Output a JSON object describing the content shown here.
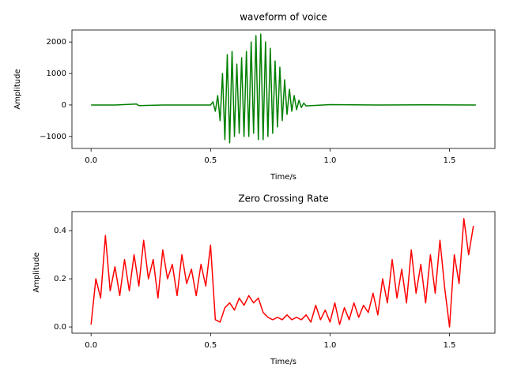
{
  "chart_data": [
    {
      "type": "line",
      "title": "waveform of voice",
      "xlabel": "Time/s",
      "ylabel": "Amplitude",
      "xlim": [
        -0.08,
        1.69
      ],
      "ylim": [
        -1380,
        2380
      ],
      "xticks": [
        {
          "value": 0,
          "label": "0.0"
        },
        {
          "value": 0.5,
          "label": "0.5"
        },
        {
          "value": 1,
          "label": "1.0"
        },
        {
          "value": 1.5,
          "label": "1.5"
        }
      ],
      "yticks": [
        {
          "value": -1000,
          "label": "−1000"
        },
        0,
        1000,
        2000
      ],
      "series": [
        {
          "color": "#008000",
          "x": [
            0,
            0.1,
            0.19,
            0.2,
            0.3,
            0.4,
            0.5,
            0.51,
            0.52,
            0.53,
            0.54,
            0.55,
            0.56,
            0.57,
            0.58,
            0.59,
            0.6,
            0.61,
            0.62,
            0.63,
            0.64,
            0.65,
            0.66,
            0.67,
            0.68,
            0.69,
            0.7,
            0.71,
            0.72,
            0.73,
            0.74,
            0.75,
            0.76,
            0.77,
            0.78,
            0.79,
            0.8,
            0.81,
            0.82,
            0.83,
            0.84,
            0.85,
            0.86,
            0.87,
            0.88,
            0.89,
            0.9,
            1.0,
            1.2,
            1.4,
            1.61
          ],
          "values": [
            0,
            0,
            30,
            -20,
            0,
            0,
            0,
            100,
            -200,
            300,
            -500,
            1000,
            -1100,
            1600,
            -1200,
            1700,
            -1000,
            1300,
            -900,
            1500,
            -1000,
            1700,
            -1000,
            2000,
            -900,
            2200,
            -1100,
            2250,
            -1100,
            2000,
            -1000,
            1800,
            -900,
            1400,
            -700,
            1200,
            -500,
            800,
            -300,
            500,
            -200,
            300,
            -150,
            150,
            -80,
            60,
            -30,
            10,
            0,
            5,
            0
          ]
        }
      ]
    },
    {
      "type": "line",
      "title": "Zero Crossing Rate",
      "xlabel": "Time/s",
      "ylabel": "Amplitude",
      "xlim": [
        -0.08,
        1.69
      ],
      "ylim": [
        -0.026,
        0.479
      ],
      "xticks": [
        {
          "value": 0,
          "label": "0.0"
        },
        {
          "value": 0.5,
          "label": "0.5"
        },
        {
          "value": 1,
          "label": "1.0"
        },
        {
          "value": 1.5,
          "label": "1.5"
        }
      ],
      "yticks": [
        {
          "value": 0,
          "label": "0.0"
        },
        0.2,
        0.4
      ],
      "series": [
        {
          "color": "#ff0000",
          "x": [
            0,
            0.02,
            0.04,
            0.06,
            0.08,
            0.1,
            0.12,
            0.14,
            0.16,
            0.18,
            0.2,
            0.22,
            0.24,
            0.26,
            0.28,
            0.3,
            0.32,
            0.34,
            0.36,
            0.38,
            0.4,
            0.42,
            0.44,
            0.46,
            0.48,
            0.5,
            0.52,
            0.54,
            0.56,
            0.58,
            0.6,
            0.62,
            0.64,
            0.66,
            0.68,
            0.7,
            0.72,
            0.74,
            0.76,
            0.78,
            0.8,
            0.82,
            0.84,
            0.86,
            0.88,
            0.9,
            0.92,
            0.94,
            0.96,
            0.98,
            1.0,
            1.02,
            1.04,
            1.06,
            1.08,
            1.1,
            1.12,
            1.14,
            1.16,
            1.18,
            1.2,
            1.22,
            1.24,
            1.26,
            1.28,
            1.3,
            1.32,
            1.34,
            1.36,
            1.38,
            1.4,
            1.42,
            1.44,
            1.46,
            1.48,
            1.5,
            1.52,
            1.54,
            1.56,
            1.58,
            1.6
          ],
          "values": [
            0.01,
            0.2,
            0.12,
            0.38,
            0.15,
            0.25,
            0.13,
            0.28,
            0.15,
            0.3,
            0.17,
            0.36,
            0.2,
            0.28,
            0.12,
            0.32,
            0.2,
            0.26,
            0.13,
            0.3,
            0.18,
            0.24,
            0.13,
            0.26,
            0.17,
            0.34,
            0.03,
            0.02,
            0.08,
            0.1,
            0.07,
            0.12,
            0.09,
            0.13,
            0.1,
            0.12,
            0.06,
            0.04,
            0.03,
            0.04,
            0.03,
            0.05,
            0.03,
            0.04,
            0.03,
            0.05,
            0.02,
            0.09,
            0.03,
            0.07,
            0.02,
            0.1,
            0.01,
            0.08,
            0.03,
            0.1,
            0.04,
            0.09,
            0.06,
            0.14,
            0.05,
            0.2,
            0.1,
            0.28,
            0.12,
            0.24,
            0.1,
            0.32,
            0.14,
            0.26,
            0.1,
            0.3,
            0.14,
            0.36,
            0.16,
            0.0,
            0.3,
            0.18,
            0.45,
            0.3,
            0.42
          ]
        }
      ]
    }
  ]
}
